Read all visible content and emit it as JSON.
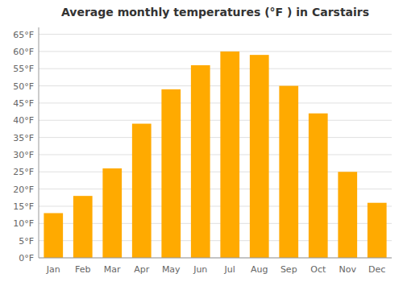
{
  "chart_data": {
    "type": "bar",
    "title": "Average monthly temperatures (°F ) in Carstairs",
    "categories": [
      "Jan",
      "Feb",
      "Mar",
      "Apr",
      "May",
      "Jun",
      "Jul",
      "Aug",
      "Sep",
      "Oct",
      "Nov",
      "Dec"
    ],
    "values": [
      13,
      18,
      26,
      39,
      49,
      56,
      60,
      59,
      50,
      42,
      25,
      16
    ],
    "color": "#FFAA00",
    "ylim": [
      0,
      67
    ],
    "yticks": [
      {
        "value": 0,
        "label": "0°F"
      },
      {
        "value": 5,
        "label": "5°F"
      },
      {
        "value": 10,
        "label": "10°F"
      },
      {
        "value": 15,
        "label": "15°F"
      },
      {
        "value": 20,
        "label": "20°F"
      },
      {
        "value": 25,
        "label": "25°F"
      },
      {
        "value": 30,
        "label": "30°F"
      },
      {
        "value": 35,
        "label": "35°F"
      },
      {
        "value": 40,
        "label": "40°F"
      },
      {
        "value": 45,
        "label": "45°F"
      },
      {
        "value": 50,
        "label": "50°F"
      },
      {
        "value": 55,
        "label": "55°F"
      },
      {
        "value": 60,
        "label": "60°F"
      },
      {
        "value": 65,
        "label": "65°F"
      }
    ],
    "grid": true
  }
}
